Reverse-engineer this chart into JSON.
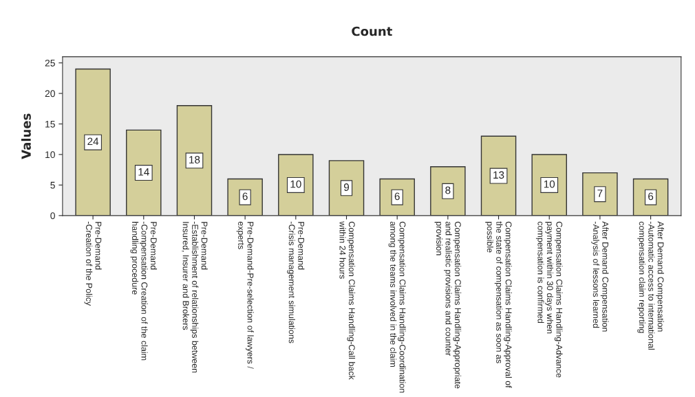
{
  "chart_data": {
    "type": "bar",
    "title": "Count",
    "ylabel": "Values",
    "categories": [
      "Pre-Demand\n-Creation of the Policy",
      "Pre-Demand\n-Compensation Creation of the claim\nhandling procedure",
      "Pre-Demand\n-Establishment of relationships between\nInsured, Insurer and Brokers",
      "Pre-Demand-Pre-selection of lawyers /\nexperts",
      "Pre-Demand\n-Crisis management simulations",
      "Compensation Claims Handling-Call back\nwithin 24 hours",
      "Compensation Claims Handling-Coordination\namong the teams involved in the claim",
      "Compensation Claims Handling-Appropriate\nand realistic provisions and counter\nprovision",
      "Compensation Claims Handling-Approval of\nthe state of compensation as soon as\npossible",
      "Compensation Claims Handling-Advance\npayment within 30 days when\ncompensation is confirmed",
      "After Demand Compensation\n-Analysis of lessons learned",
      "After Demand Compensation\n-Automatic access to international\ncompensation claim reporting"
    ],
    "values": [
      24,
      14,
      18,
      6,
      10,
      9,
      6,
      8,
      13,
      10,
      7,
      6
    ],
    "color": "#d4cf9a",
    "ylim": [
      0,
      26
    ],
    "yticks": [
      0,
      5,
      10,
      15,
      20,
      25
    ],
    "grid": false,
    "legend": false,
    "data_labels": true
  }
}
